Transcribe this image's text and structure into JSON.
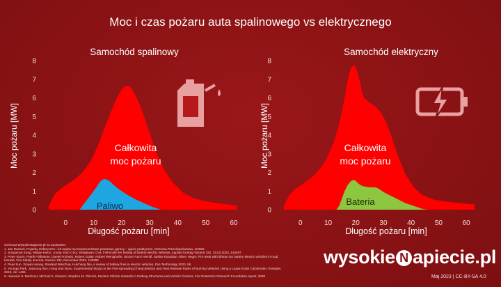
{
  "title": "Moc i czas pożaru auta spalinowego vs elektrycznego",
  "colors": {
    "background": "#8a1214",
    "total_fire": "#fe0000",
    "fuel": "#1ea6e0",
    "battery": "#8dc63f",
    "icon": "#e8a0a0"
  },
  "chart_data": [
    {
      "type": "area",
      "title": "Samochód spalinowy",
      "xlabel": "Długość  pożaru [min]",
      "ylabel": "Moc  pożaru [MW]",
      "xlim": [
        -8,
        62
      ],
      "ylim": [
        0,
        8
      ],
      "xticks": [
        0,
        10,
        20,
        30,
        40,
        50,
        60
      ],
      "yticks": [
        0,
        1,
        2,
        3,
        4,
        5,
        6,
        7,
        8
      ],
      "icon": "fuel-canister-icon",
      "series": [
        {
          "name": "Całkowita moc pożaru",
          "label_lines": [
            "Całkowita",
            "moc pożaru"
          ],
          "x": [
            -6,
            -4,
            -2,
            0,
            3,
            6,
            9,
            12,
            14,
            16,
            18,
            19,
            20,
            21,
            22,
            23,
            24,
            26,
            28,
            30,
            32,
            35,
            38,
            42,
            46,
            50,
            54,
            58,
            61
          ],
          "y": [
            0.2,
            0.8,
            1.1,
            1.3,
            1.6,
            2.0,
            2.6,
            3.6,
            4.4,
            5.2,
            5.9,
            6.2,
            6.45,
            6.6,
            6.65,
            6.6,
            6.4,
            5.8,
            5.0,
            4.1,
            3.2,
            2.2,
            1.5,
            0.9,
            0.6,
            0.45,
            0.35,
            0.28,
            0.22
          ]
        },
        {
          "name": "Paliwo",
          "x": [
            5,
            7,
            9,
            11,
            12,
            13,
            14,
            15,
            16,
            17,
            19,
            22,
            25,
            28,
            31,
            34
          ],
          "y": [
            0,
            0.4,
            0.8,
            1.2,
            1.45,
            1.6,
            1.65,
            1.6,
            1.5,
            1.35,
            1.1,
            0.8,
            0.55,
            0.35,
            0.15,
            0
          ]
        }
      ]
    },
    {
      "type": "area",
      "title": "Samochód elektryczny",
      "xlabel": "Długość  pożaru [min]",
      "ylabel": "Moc  pożaru [MW]",
      "xlim": [
        -8,
        65
      ],
      "ylim": [
        0,
        8
      ],
      "xticks": [
        0,
        10,
        20,
        30,
        40,
        50,
        60
      ],
      "yticks": [
        0,
        1,
        2,
        3,
        4,
        5,
        6,
        7,
        8
      ],
      "icon": "battery-lightning-icon",
      "series": [
        {
          "name": "Całkowita moc pożaru",
          "label_lines": [
            "Całkowita",
            "moc pożaru"
          ],
          "x": [
            -6,
            -4,
            -2,
            0,
            3,
            6,
            9,
            12,
            14,
            16,
            17,
            18,
            19,
            20,
            21,
            22,
            23,
            25,
            27,
            29,
            31,
            33,
            35,
            38,
            41,
            44,
            48,
            52,
            56,
            60,
            63
          ],
          "y": [
            0.2,
            0.8,
            1.1,
            1.3,
            1.6,
            2.0,
            2.6,
            3.6,
            4.6,
            6.0,
            6.9,
            7.5,
            7.75,
            7.65,
            7.2,
            6.5,
            6.0,
            5.75,
            5.55,
            5.25,
            4.7,
            3.9,
            3.0,
            1.9,
            1.2,
            0.8,
            0.55,
            0.45,
            0.38,
            0.32,
            0.28
          ]
        },
        {
          "name": "Bateria",
          "x": [
            13,
            14,
            15,
            16,
            17,
            18,
            19,
            20,
            21,
            22,
            23,
            25,
            27,
            28,
            29,
            30,
            32,
            34,
            36,
            38,
            40,
            42,
            44,
            46
          ],
          "y": [
            0,
            0.2,
            0.6,
            1.0,
            1.3,
            1.5,
            1.6,
            1.55,
            1.4,
            1.3,
            1.25,
            1.2,
            1.2,
            1.15,
            1.05,
            0.95,
            0.8,
            0.65,
            0.5,
            0.35,
            0.25,
            0.15,
            0.05,
            0
          ]
        }
      ]
    }
  ],
  "references": {
    "header": "Schemat WysokieNapiecie.pl na podstawie:",
    "items": [
      "1.    Jan Rachoń, Pojazdy elektryczne i ich wpływ na bezpieczeństwo pożarowe garaży – ujęcie praktyczne, Ochrona Przeciwpożarowa, 4/2022",
      "2.    Sungwook Kang, Minjae Kwon, Joung Yoon Choi, Sengkwan Choi, Full-scale fire testing of battery electric vehicles, Applied Energy Volume 332, 15.02.2023, 120497",
      "3.    Peter Sturm, Patrik Fößleitner, Daniel Fruhwirt, Robert Galler, Robert Wenighofer, Simon Franz Heindl, Stefan Krausbar, Oliver Heger, Fire tests with lithium-ion battery electric vehicles in road",
      "        tunnels, Fire Safety Journal, Volume 134, December 2022, 103695",
      "4.    Peiyi Sun, Xinyan Huang, Roeland Bisschop, Huichang Niu, A review of battery fires in electric vehicles, Fire Technology 2020, 56",
      "5.    Youngjo Park, Jaiyoung Ryu, Hong Sun Ryou, Experimental Study on the Fire-Spreading Characteristics and Heat Release Rates of Burning Vehicles Using a Large-Scale Calorimeter, Energies",
      "        2019, 12, 1465",
      "6.    Haavard H. Boehmer, Michael S. Klassen, Stephen M. Olenick, Modern Vehicle Hazards in Parking Structures and Vehicle Carriers, Fire Protection Research Foundation report, 2020"
    ]
  },
  "brand": {
    "name_pre": "wysokie",
    "name_mark": "N",
    "name_post": "apiecie.pl"
  },
  "license": "Maj 2023  |  CC-BY-SA 4.0"
}
